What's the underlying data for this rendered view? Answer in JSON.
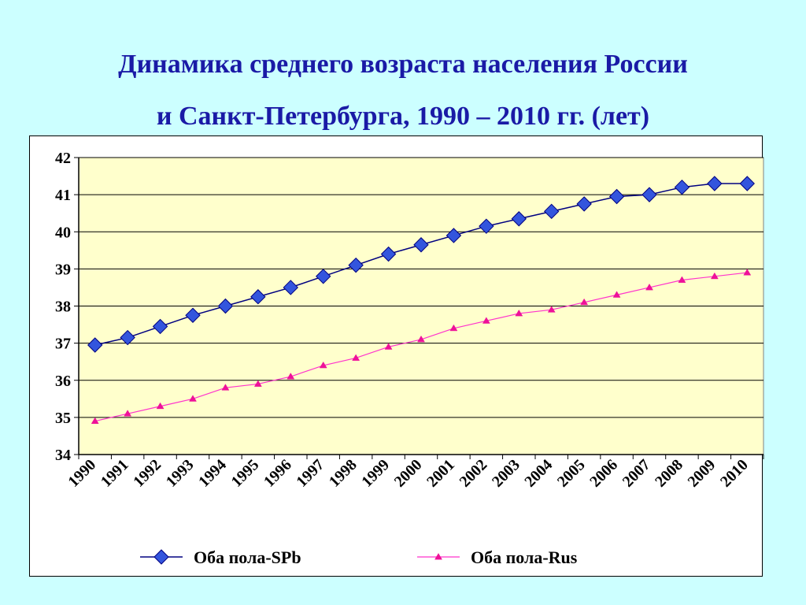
{
  "title_line1": "Динамика среднего возраста населения России",
  "title_line2": "и Санкт-Петербурга, 1990 – 2010 гг. (лет)",
  "colors": {
    "background": "#ccffff",
    "plot_area": "#ffffcc",
    "title": "#1a1aa6",
    "spb_line": "#000080",
    "spb_marker": "#3355dd",
    "rus_line": "#ff33cc",
    "rus_marker": "#ee1199"
  },
  "chart_data": {
    "type": "line",
    "title": "Динамика среднего возраста населения России и Санкт-Петербурга, 1990 – 2010 гг. (лет)",
    "xlabel": "",
    "ylabel": "",
    "ylim": [
      34,
      42
    ],
    "yticks": [
      "34",
      "35",
      "36",
      "37",
      "38",
      "39",
      "40",
      "41",
      "42"
    ],
    "grid": true,
    "legend_position": "bottom",
    "categories": [
      "1990",
      "1991",
      "1992",
      "1993",
      "1994",
      "1995",
      "1996",
      "1997",
      "1998",
      "1999",
      "2000",
      "2001",
      "2002",
      "2003",
      "2004",
      "2005",
      "2006",
      "2007",
      "2008",
      "2009",
      "2010"
    ],
    "series": [
      {
        "name": "Оба пола-SPb",
        "marker": "diamond",
        "values": [
          36.95,
          37.15,
          37.45,
          37.75,
          38.0,
          38.25,
          38.5,
          38.8,
          39.1,
          39.4,
          39.65,
          39.9,
          40.15,
          40.35,
          40.55,
          40.75,
          40.95,
          41.0,
          41.2,
          41.3,
          41.3
        ]
      },
      {
        "name": "Оба пола-Rus",
        "marker": "triangle",
        "values": [
          34.9,
          35.1,
          35.3,
          35.5,
          35.8,
          35.9,
          36.1,
          36.4,
          36.6,
          36.9,
          37.1,
          37.4,
          37.6,
          37.8,
          37.9,
          38.1,
          38.3,
          38.5,
          38.7,
          38.8,
          38.9
        ]
      }
    ]
  }
}
